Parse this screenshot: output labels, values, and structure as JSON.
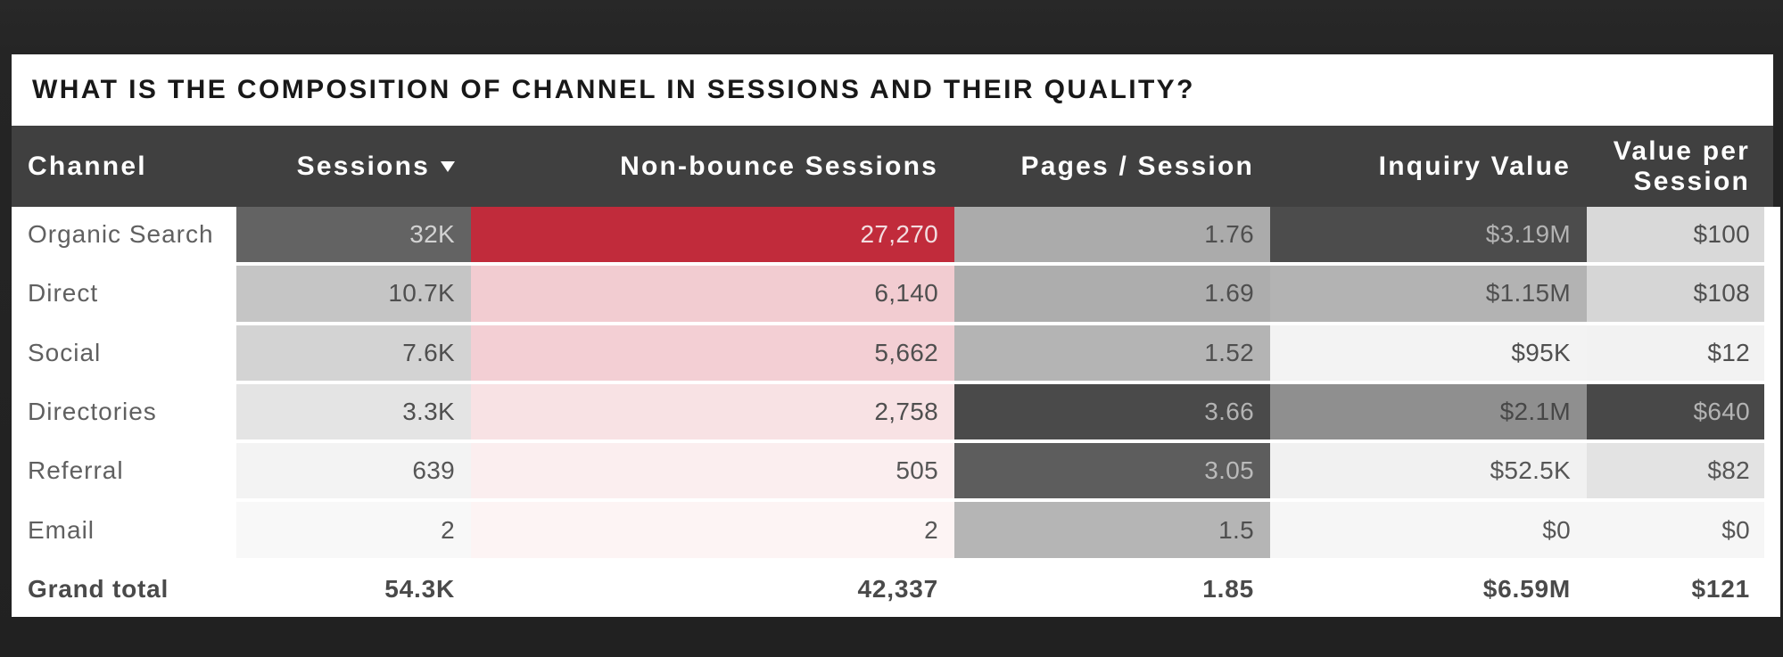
{
  "page": {
    "background_top": "#282828",
    "background_bottom": "#212121"
  },
  "card": {
    "background": "#ffffff"
  },
  "title": "WHAT IS THE COMPOSITION OF CHANNEL IN SESSIONS AND THEIR QUALITY?",
  "header": {
    "background": "#404040",
    "text_color": "#ffffff",
    "columns": [
      {
        "id": "channel",
        "label": "Channel"
      },
      {
        "id": "sessions",
        "label": "Sessions",
        "sorted": "desc"
      },
      {
        "id": "nonbounce",
        "label": "Non-bounce Sessions"
      },
      {
        "id": "pages",
        "label": "Pages / Session"
      },
      {
        "id": "inquiry",
        "label": "Inquiry Value"
      },
      {
        "id": "vps",
        "label": "Value per Session"
      }
    ]
  },
  "rows": [
    {
      "channel": "Organic Search",
      "cells": [
        {
          "v": "32K",
          "bg": "#636363",
          "fg": "#d2d2d2"
        },
        {
          "v": "27,270",
          "bg": "#c12b3b",
          "fg": "#f2dde0"
        },
        {
          "v": "1.76",
          "bg": "#ababab",
          "fg": "#4f4f4f"
        },
        {
          "v": "$3.19M",
          "bg": "#4c4c4c",
          "fg": "#b3b3b3"
        },
        {
          "v": "$100",
          "bg": "#d9d9d9",
          "fg": "#4f4f4f"
        }
      ]
    },
    {
      "channel": "Direct",
      "cells": [
        {
          "v": "10.7K",
          "bg": "#c5c5c5",
          "fg": "#4f4f4f"
        },
        {
          "v": "6,140",
          "bg": "#f2ccd1",
          "fg": "#4f4f4f"
        },
        {
          "v": "1.69",
          "bg": "#adadad",
          "fg": "#4f4f4f"
        },
        {
          "v": "$1.15M",
          "bg": "#b3b3b3",
          "fg": "#4f4f4f"
        },
        {
          "v": "$108",
          "bg": "#d6d6d6",
          "fg": "#4f4f4f"
        }
      ]
    },
    {
      "channel": "Social",
      "cells": [
        {
          "v": "7.6K",
          "bg": "#d3d3d3",
          "fg": "#4f4f4f"
        },
        {
          "v": "5,662",
          "bg": "#f3cfd4",
          "fg": "#4f4f4f"
        },
        {
          "v": "1.52",
          "bg": "#b4b4b4",
          "fg": "#4f4f4f"
        },
        {
          "v": "$95K",
          "bg": "#f3f3f3",
          "fg": "#4f4f4f"
        },
        {
          "v": "$12",
          "bg": "#f2f2f2",
          "fg": "#4f4f4f"
        }
      ]
    },
    {
      "channel": "Directories",
      "cells": [
        {
          "v": "3.3K",
          "bg": "#e4e4e4",
          "fg": "#4f4f4f"
        },
        {
          "v": "2,758",
          "bg": "#f8e2e4",
          "fg": "#4f4f4f"
        },
        {
          "v": "3.66",
          "bg": "#4a4a4a",
          "fg": "#b3b3b3"
        },
        {
          "v": "$2.1M",
          "bg": "#8f8f8f",
          "fg": "#474747"
        },
        {
          "v": "$640",
          "bg": "#484848",
          "fg": "#b3b3b3"
        }
      ]
    },
    {
      "channel": "Referral",
      "cells": [
        {
          "v": "639",
          "bg": "#f3f3f3",
          "fg": "#565656"
        },
        {
          "v": "505",
          "bg": "#fbeeef",
          "fg": "#565656"
        },
        {
          "v": "3.05",
          "bg": "#5d5d5d",
          "fg": "#bababa"
        },
        {
          "v": "$52.5K",
          "bg": "#f1f1f1",
          "fg": "#565656"
        },
        {
          "v": "$82",
          "bg": "#e3e3e3",
          "fg": "#565656"
        }
      ]
    },
    {
      "channel": "Email",
      "cells": [
        {
          "v": "2",
          "bg": "#f8f8f8",
          "fg": "#565656"
        },
        {
          "v": "2",
          "bg": "#fdf4f4",
          "fg": "#565656"
        },
        {
          "v": "1.5",
          "bg": "#b5b5b5",
          "fg": "#4f4f4f"
        },
        {
          "v": "$0",
          "bg": "#f6f6f6",
          "fg": "#565656"
        },
        {
          "v": "$0",
          "bg": "#f6f6f6",
          "fg": "#565656"
        }
      ]
    }
  ],
  "grand_total": {
    "label": "Grand total",
    "values": [
      "54.3K",
      "42,337",
      "1.85",
      "$6.59M",
      "$121"
    ],
    "text_color": "#4a4a4a"
  },
  "row_label_color": "#606060",
  "chart_data": {
    "type": "table",
    "title": "WHAT IS THE COMPOSITION OF CHANNEL IN SESSIONS AND THEIR QUALITY?",
    "columns": [
      "Channel",
      "Sessions",
      "Non-bounce Sessions",
      "Pages / Session",
      "Inquiry Value",
      "Value per Session"
    ],
    "rows": [
      [
        "Organic Search",
        "32K",
        "27,270",
        "1.76",
        "$3.19M",
        "$100"
      ],
      [
        "Direct",
        "10.7K",
        "6,140",
        "1.69",
        "$1.15M",
        "$108"
      ],
      [
        "Social",
        "7.6K",
        "5,662",
        "1.52",
        "$95K",
        "$12"
      ],
      [
        "Directories",
        "3.3K",
        "2,758",
        "3.66",
        "$2.1M",
        "$640"
      ],
      [
        "Referral",
        "639",
        "505",
        "3.05",
        "$52.5K",
        "$82"
      ],
      [
        "Email",
        "2",
        "2",
        "1.5",
        "$0",
        "$0"
      ],
      [
        "Grand total",
        "54.3K",
        "42,337",
        "1.85",
        "$6.59M",
        "$121"
      ]
    ],
    "heatmap": true,
    "sorted_by": "Sessions desc"
  }
}
